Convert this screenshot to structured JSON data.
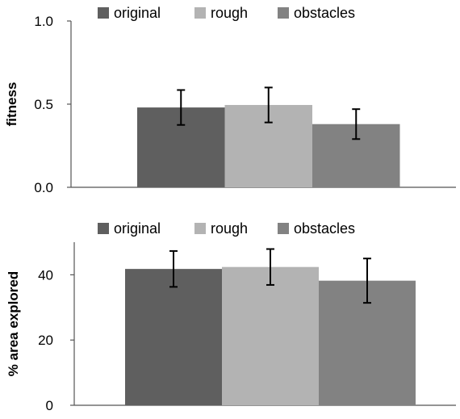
{
  "chart_data": [
    {
      "type": "bar",
      "categories": [
        ""
      ],
      "series": [
        {
          "name": "original",
          "values": [
            0.48
          ],
          "error": [
            0.105
          ],
          "color": "#5f5f5f"
        },
        {
          "name": "rough",
          "values": [
            0.495
          ],
          "error": [
            0.105
          ],
          "color": "#b3b3b3"
        },
        {
          "name": "obstacles",
          "values": [
            0.38
          ],
          "error": [
            0.09
          ],
          "color": "#828282"
        }
      ],
      "ylabel": "fitness",
      "ylim": [
        0,
        1.0
      ],
      "yticks": [
        0,
        0.5,
        1.0
      ],
      "ytick_labels": [
        "0.0",
        "0.5",
        "1.0"
      ],
      "grid": false,
      "legend": "top"
    },
    {
      "type": "bar",
      "categories": [
        ""
      ],
      "series": [
        {
          "name": "original",
          "values": [
            41.8
          ],
          "error": [
            5.5
          ],
          "color": "#5f5f5f"
        },
        {
          "name": "rough",
          "values": [
            42.4
          ],
          "error": [
            5.5
          ],
          "color": "#b3b3b3"
        },
        {
          "name": "obstacles",
          "values": [
            38.2
          ],
          "error": [
            6.8
          ],
          "color": "#828282"
        }
      ],
      "ylabel": "% area explored",
      "ylim": [
        0,
        50
      ],
      "yticks": [
        0,
        20,
        40
      ],
      "ytick_labels": [
        "0",
        "20",
        "40"
      ],
      "grid": false,
      "legend": "top"
    }
  ]
}
